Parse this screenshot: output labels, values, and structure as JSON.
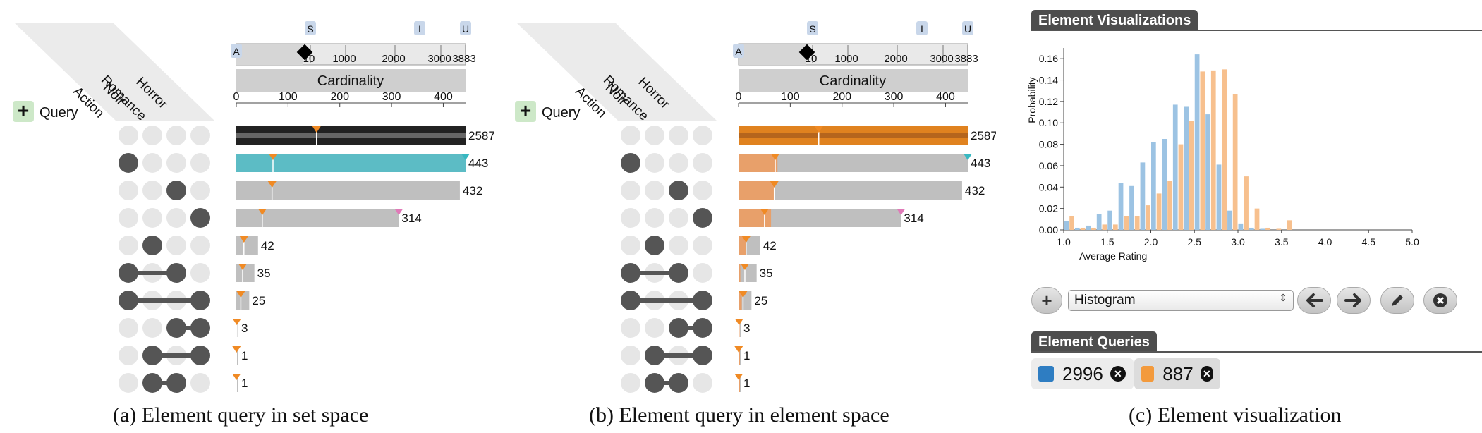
{
  "panels": [
    {
      "query_button_label": "Query",
      "slider_letters": [
        "A",
        "S",
        "I",
        "U"
      ],
      "scale_ticks": [
        "10",
        "1000",
        "2000",
        "3000",
        "3883"
      ],
      "header_label": "Cardinality",
      "axis_ticks": [
        "0",
        "100",
        "200",
        "300",
        "400"
      ],
      "set_names": [
        "Action",
        "Noir",
        "Romance",
        "Horror"
      ],
      "caption": "(a)  Element query in set space"
    },
    {
      "query_button_label": "Query",
      "slider_letters": [
        "A",
        "S",
        "I",
        "U"
      ],
      "scale_ticks": [
        "10",
        "1000",
        "2000",
        "3000",
        "3883"
      ],
      "header_label": "Cardinality",
      "axis_ticks": [
        "0",
        "100",
        "200",
        "300",
        "400"
      ],
      "set_names": [
        "Action",
        "Noir",
        "Romance",
        "Horror"
      ],
      "caption": "(b)  Element query in element space"
    }
  ],
  "rows": [
    {
      "sets": [],
      "count": 2587
    },
    {
      "sets": [
        0
      ],
      "count": 443
    },
    {
      "sets": [
        2
      ],
      "count": 432
    },
    {
      "sets": [
        3
      ],
      "count": 314
    },
    {
      "sets": [
        1
      ],
      "count": 42
    },
    {
      "sets": [
        0,
        2
      ],
      "count": 35
    },
    {
      "sets": [
        0,
        3
      ],
      "count": 25
    },
    {
      "sets": [
        2,
        3
      ],
      "count": 3
    },
    {
      "sets": [
        1,
        3
      ],
      "count": 1
    },
    {
      "sets": [
        1,
        2
      ],
      "count": 1
    }
  ],
  "row_labels": [
    "2587",
    "443",
    "432",
    "314",
    "42",
    "35",
    "25",
    "3",
    "1",
    "1"
  ],
  "colors": {
    "set_query": "#5cbcc5",
    "element_query": "#e8a06a",
    "element_query_dark": "#e0821f",
    "blue_query": "#2e7dc2",
    "orange_query": "#f39a3c",
    "histogram_blue": "#9cc3e3",
    "histogram_orange": "#f7c08e",
    "marker_orange": "#f08a24",
    "marker_teal": "#37b8c1",
    "marker_pink": "#e07ab8"
  },
  "element_viz": {
    "title": "Element Visualizations",
    "toolbar": {
      "add_label": "+",
      "select_value": "Histogram",
      "select_arrows": "⇕"
    },
    "queries_title": "Element Queries",
    "queries": [
      {
        "count": "2996",
        "color": "#2e7dc2"
      },
      {
        "count": "887",
        "color": "#f39a3c"
      }
    ],
    "caption": "(c)  Element visualization"
  },
  "chart_data": {
    "type": "bar",
    "xlabel": "Average Rating",
    "ylabel": "Probability",
    "xlim": [
      1.0,
      5.0
    ],
    "ylim": [
      0,
      0.17
    ],
    "xticks": [
      "1.0",
      "1.5",
      "2.0",
      "2.5",
      "3.0",
      "3.5",
      "4.0",
      "4.5",
      "5.0"
    ],
    "yticks": [
      "0.00",
      "0.02",
      "0.04",
      "0.06",
      "0.08",
      "0.10",
      "0.12",
      "0.14",
      "0.16"
    ],
    "bin_width": 0.125,
    "bin_starts": [
      1.0,
      1.125,
      1.25,
      1.375,
      1.5,
      1.625,
      1.75,
      1.875,
      2.0,
      2.125,
      2.25,
      2.375,
      2.5,
      2.625,
      2.75,
      2.875,
      3.0,
      3.125,
      3.25,
      3.375,
      3.5,
      3.625,
      3.75,
      3.875,
      4.0,
      4.125,
      4.25,
      4.375,
      4.5,
      4.625,
      4.75,
      4.875
    ],
    "series": [
      {
        "values": [
          0.008,
          0.002,
          0.004,
          0.015,
          0.018,
          0.044,
          0.041,
          0.063,
          0.082,
          0.085,
          0.117,
          0.115,
          0.164,
          0.108,
          0.061,
          0.018,
          0.006,
          0.002,
          0.001,
          0.0,
          0.0,
          0.0,
          0.0,
          0.0,
          0.0,
          0.0,
          0.0,
          0.0,
          0.0,
          0.0,
          0.0,
          0.0
        ]
      },
      {
        "values": [
          0.013,
          0.002,
          0.002,
          0.005,
          0.005,
          0.013,
          0.013,
          0.023,
          0.034,
          0.046,
          0.08,
          0.102,
          0.148,
          0.149,
          0.15,
          0.127,
          0.05,
          0.02,
          0.002,
          0.001,
          0.009,
          0.0,
          0.0,
          0.0,
          0.0,
          0.0,
          0.0,
          0.0,
          0.0,
          0.0,
          0.0,
          0.0
        ]
      }
    ]
  }
}
